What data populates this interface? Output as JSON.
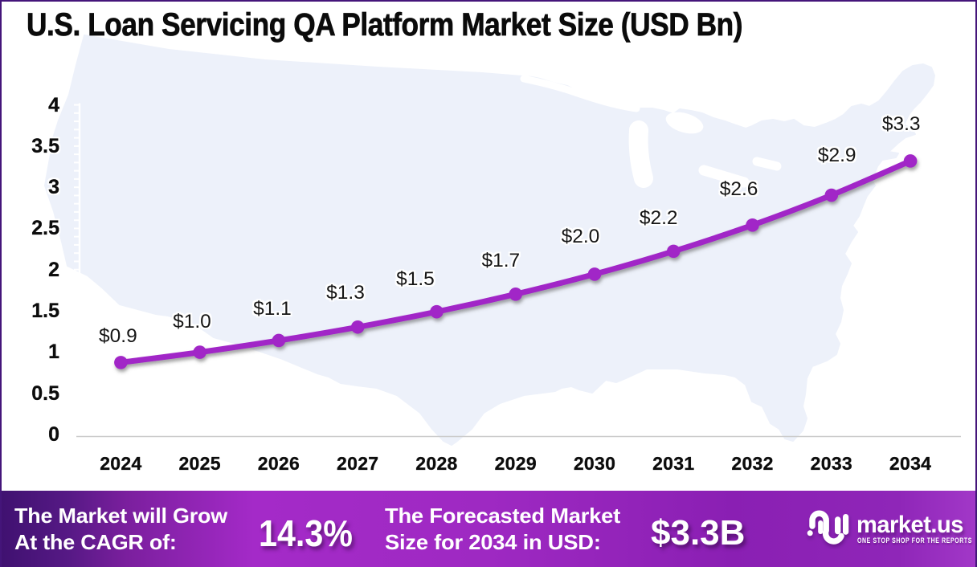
{
  "title": "U.S. Loan Servicing QA Platform Market Size (USD Bn)",
  "chart_data": {
    "type": "line",
    "x": [
      2024,
      2025,
      2026,
      2027,
      2028,
      2029,
      2030,
      2031,
      2032,
      2033,
      2034
    ],
    "values": [
      0.9,
      1.0,
      1.1,
      1.3,
      1.5,
      1.7,
      2.0,
      2.2,
      2.6,
      2.9,
      3.3
    ],
    "point_labels": [
      "$0.9",
      "$1.0",
      "$1.1",
      "$1.3",
      "$1.5",
      "$1.7",
      "$2.0",
      "$2.2",
      "$2.6",
      "$2.9",
      "$3.3"
    ],
    "title": "U.S. Loan Servicing QA Platform Market Size (USD Bn)",
    "xlabel": "",
    "ylabel": "",
    "ylim": [
      0,
      4
    ],
    "y_tick_labels": [
      "0",
      "0.5",
      "1",
      "1.5",
      "2",
      "2.5",
      "3",
      "3.5",
      "4"
    ],
    "y_tick_values": [
      0,
      0.5,
      1,
      1.5,
      2,
      2.5,
      3,
      3.5,
      4
    ],
    "y_minor_step": 0.1,
    "grid": "off",
    "legend": "none",
    "line_color": "#a125c7",
    "marker_color": "#a125c7",
    "map_color": "#edf1fa"
  },
  "footer": {
    "cagr_label_line1": "The Market will Grow",
    "cagr_label_line2": "At the CAGR of:",
    "cagr_value": "14.3%",
    "forecast_label_line1": "The Forecasted Market",
    "forecast_label_line2": "Size for 2034 in USD:",
    "forecast_value": "$3.3B",
    "band_color_left": "#45175f",
    "band_color_mid": "#9e2ad4",
    "band_color_right": "#9b33c4"
  },
  "logo": {
    "wordmark": "market.us",
    "tagline": "ONE STOP SHOP FOR THE REPORTS"
  },
  "colors": {
    "background": "#ffffff",
    "frame_border": "#44157a",
    "axis_white": "#ffffff",
    "baseline_gray": "#cccccc",
    "text_black": "#0b0b0b"
  }
}
